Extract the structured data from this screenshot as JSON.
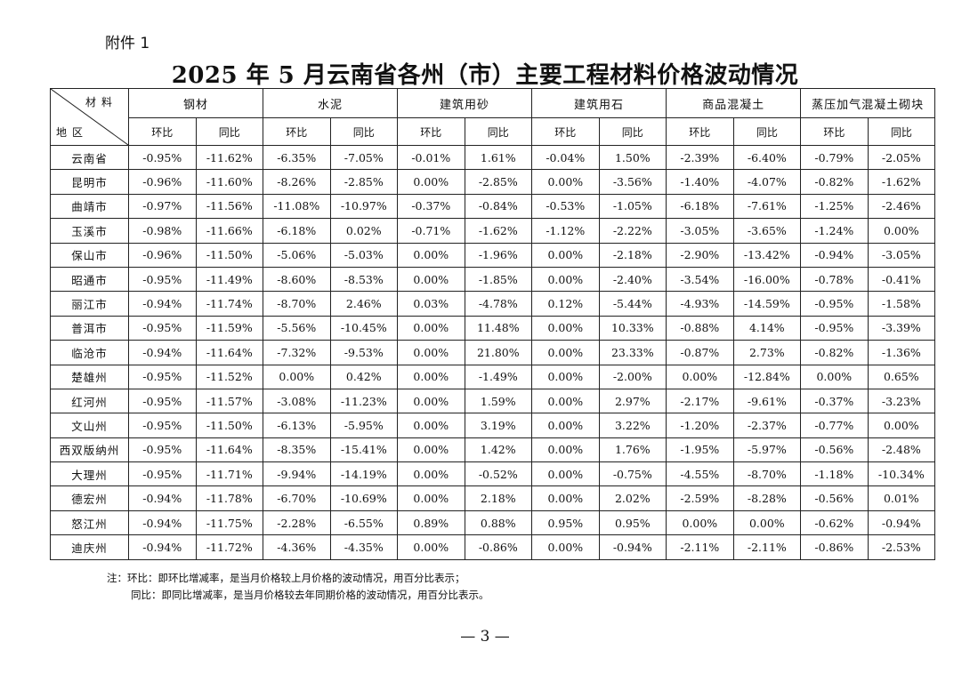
{
  "attachment_label": "附件 1",
  "title": "2025 年 5 月云南省各州（市）主要工程材料价格波动情况",
  "corner": {
    "top": "材料",
    "bottom": "地区"
  },
  "materials": [
    "钢材",
    "水泥",
    "建筑用砂",
    "建筑用石",
    "商品混凝土",
    "蒸压加气混凝土砌块"
  ],
  "sub_headers": {
    "mom": "环比",
    "yoy": "同比"
  },
  "rows": [
    {
      "region": "云南省",
      "values": [
        "-0.95%",
        "-11.62%",
        "-6.35%",
        "-7.05%",
        "-0.01%",
        "1.61%",
        "-0.04%",
        "1.50%",
        "-2.39%",
        "-6.40%",
        "-0.79%",
        "-2.05%"
      ]
    },
    {
      "region": "昆明市",
      "values": [
        "-0.96%",
        "-11.60%",
        "-8.26%",
        "-2.85%",
        "0.00%",
        "-2.85%",
        "0.00%",
        "-3.56%",
        "-1.40%",
        "-4.07%",
        "-0.82%",
        "-1.62%"
      ]
    },
    {
      "region": "曲靖市",
      "values": [
        "-0.97%",
        "-11.56%",
        "-11.08%",
        "-10.97%",
        "-0.37%",
        "-0.84%",
        "-0.53%",
        "-1.05%",
        "-6.18%",
        "-7.61%",
        "-1.25%",
        "-2.46%"
      ]
    },
    {
      "region": "玉溪市",
      "values": [
        "-0.98%",
        "-11.66%",
        "-6.18%",
        "0.02%",
        "-0.71%",
        "-1.62%",
        "-1.12%",
        "-2.22%",
        "-3.05%",
        "-3.65%",
        "-1.24%",
        "0.00%"
      ]
    },
    {
      "region": "保山市",
      "values": [
        "-0.96%",
        "-11.50%",
        "-5.06%",
        "-5.03%",
        "0.00%",
        "-1.96%",
        "0.00%",
        "-2.18%",
        "-2.90%",
        "-13.42%",
        "-0.94%",
        "-3.05%"
      ]
    },
    {
      "region": "昭通市",
      "values": [
        "-0.95%",
        "-11.49%",
        "-8.60%",
        "-8.53%",
        "0.00%",
        "-1.85%",
        "0.00%",
        "-2.40%",
        "-3.54%",
        "-16.00%",
        "-0.78%",
        "-0.41%"
      ]
    },
    {
      "region": "丽江市",
      "values": [
        "-0.94%",
        "-11.74%",
        "-8.70%",
        "2.46%",
        "0.03%",
        "-4.78%",
        "0.12%",
        "-5.44%",
        "-4.93%",
        "-14.59%",
        "-0.95%",
        "-1.58%"
      ]
    },
    {
      "region": "普洱市",
      "values": [
        "-0.95%",
        "-11.59%",
        "-5.56%",
        "-10.45%",
        "0.00%",
        "11.48%",
        "0.00%",
        "10.33%",
        "-0.88%",
        "4.14%",
        "-0.95%",
        "-3.39%"
      ]
    },
    {
      "region": "临沧市",
      "values": [
        "-0.94%",
        "-11.64%",
        "-7.32%",
        "-9.53%",
        "0.00%",
        "21.80%",
        "0.00%",
        "23.33%",
        "-0.87%",
        "2.73%",
        "-0.82%",
        "-1.36%"
      ]
    },
    {
      "region": "楚雄州",
      "values": [
        "-0.95%",
        "-11.52%",
        "0.00%",
        "0.42%",
        "0.00%",
        "-1.49%",
        "0.00%",
        "-2.00%",
        "0.00%",
        "-12.84%",
        "0.00%",
        "0.65%"
      ]
    },
    {
      "region": "红河州",
      "values": [
        "-0.95%",
        "-11.57%",
        "-3.08%",
        "-11.23%",
        "0.00%",
        "1.59%",
        "0.00%",
        "2.97%",
        "-2.17%",
        "-9.61%",
        "-0.37%",
        "-3.23%"
      ]
    },
    {
      "region": "文山州",
      "values": [
        "-0.95%",
        "-11.50%",
        "-6.13%",
        "-5.95%",
        "0.00%",
        "3.19%",
        "0.00%",
        "3.22%",
        "-1.20%",
        "-2.37%",
        "-0.77%",
        "0.00%"
      ]
    },
    {
      "region": "西双版纳州",
      "values": [
        "-0.95%",
        "-11.64%",
        "-8.35%",
        "-15.41%",
        "0.00%",
        "1.42%",
        "0.00%",
        "1.76%",
        "-1.95%",
        "-5.97%",
        "-0.56%",
        "-2.48%"
      ]
    },
    {
      "region": "大理州",
      "values": [
        "-0.95%",
        "-11.71%",
        "-9.94%",
        "-14.19%",
        "0.00%",
        "-0.52%",
        "0.00%",
        "-0.75%",
        "-4.55%",
        "-8.70%",
        "-1.18%",
        "-10.34%"
      ]
    },
    {
      "region": "德宏州",
      "values": [
        "-0.94%",
        "-11.78%",
        "-6.70%",
        "-10.69%",
        "0.00%",
        "2.18%",
        "0.00%",
        "2.02%",
        "-2.59%",
        "-8.28%",
        "-0.56%",
        "0.01%"
      ]
    },
    {
      "region": "怒江州",
      "values": [
        "-0.94%",
        "-11.75%",
        "-2.28%",
        "-6.55%",
        "0.89%",
        "0.88%",
        "0.95%",
        "0.95%",
        "0.00%",
        "0.00%",
        "-0.62%",
        "-0.94%"
      ]
    },
    {
      "region": "迪庆州",
      "values": [
        "-0.94%",
        "-11.72%",
        "-4.36%",
        "-4.35%",
        "0.00%",
        "-0.86%",
        "0.00%",
        "-0.94%",
        "-2.11%",
        "-2.11%",
        "-0.86%",
        "-2.53%"
      ]
    }
  ],
  "notes": [
    "注：环比：即环比增减率，是当月价格较上月价格的波动情况，用百分比表示；",
    "同比：即同比增减率，是当月价格较去年同期价格的波动情况，用百分比表示。"
  ],
  "page_number": "— 3 —"
}
